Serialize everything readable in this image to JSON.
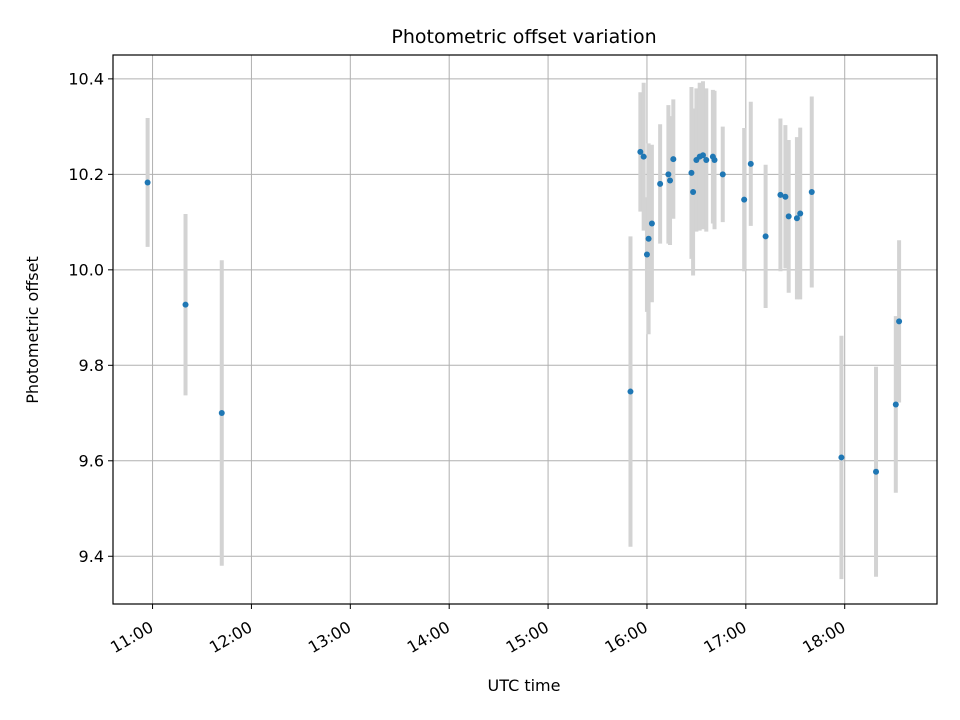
{
  "chart_data": {
    "type": "scatter",
    "title": "Photometric offset variation",
    "xlabel": "UTC time",
    "ylabel": "Photometric offset",
    "x_ticks": [
      "11:00",
      "12:00",
      "13:00",
      "14:00",
      "15:00",
      "16:00",
      "17:00",
      "18:00"
    ],
    "y_ticks": [
      "9.4",
      "9.6",
      "9.8",
      "10.0",
      "10.2",
      "10.4"
    ],
    "xlim": [
      "10:36",
      "18:56"
    ],
    "ylim": [
      9.3,
      10.45
    ],
    "grid": true,
    "colors": {
      "points": "#1f77b4",
      "errorbars": "#d3d3d3",
      "grid": "#b0b0b0"
    },
    "points": [
      {
        "t": "10:57",
        "y": 10.183,
        "err": 0.135
      },
      {
        "t": "11:20",
        "y": 9.927,
        "err": 0.19
      },
      {
        "t": "11:42",
        "y": 9.7,
        "err": 0.32
      },
      {
        "t": "15:50",
        "y": 9.745,
        "err": 0.325
      },
      {
        "t": "15:56",
        "y": 10.247,
        "err": 0.125
      },
      {
        "t": "15:58",
        "y": 10.237,
        "err": 0.155
      },
      {
        "t": "16:00",
        "y": 10.032,
        "err": 0.12
      },
      {
        "t": "16:01",
        "y": 10.065,
        "err": 0.2
      },
      {
        "t": "16:03",
        "y": 10.097,
        "err": 0.165
      },
      {
        "t": "16:08",
        "y": 10.18,
        "err": 0.125
      },
      {
        "t": "16:13",
        "y": 10.2,
        "err": 0.145
      },
      {
        "t": "16:14",
        "y": 10.187,
        "err": 0.135
      },
      {
        "t": "16:16",
        "y": 10.232,
        "err": 0.125
      },
      {
        "t": "16:27",
        "y": 10.203,
        "err": 0.18
      },
      {
        "t": "16:28",
        "y": 10.163,
        "err": 0.175
      },
      {
        "t": "16:30",
        "y": 10.23,
        "err": 0.15
      },
      {
        "t": "16:32",
        "y": 10.237,
        "err": 0.155
      },
      {
        "t": "16:34",
        "y": 10.24,
        "err": 0.155
      },
      {
        "t": "16:36",
        "y": 10.23,
        "err": 0.15
      },
      {
        "t": "16:40",
        "y": 10.237,
        "err": 0.14
      },
      {
        "t": "16:41",
        "y": 10.23,
        "err": 0.145
      },
      {
        "t": "16:46",
        "y": 10.2,
        "err": 0.1
      },
      {
        "t": "16:59",
        "y": 10.147,
        "err": 0.15
      },
      {
        "t": "17:03",
        "y": 10.222,
        "err": 0.13
      },
      {
        "t": "17:12",
        "y": 10.07,
        "err": 0.15
      },
      {
        "t": "17:21",
        "y": 10.157,
        "err": 0.16
      },
      {
        "t": "17:24",
        "y": 10.153,
        "err": 0.15
      },
      {
        "t": "17:26",
        "y": 10.112,
        "err": 0.16
      },
      {
        "t": "17:31",
        "y": 10.108,
        "err": 0.17
      },
      {
        "t": "17:33",
        "y": 10.118,
        "err": 0.18
      },
      {
        "t": "17:40",
        "y": 10.163,
        "err": 0.2
      },
      {
        "t": "17:58",
        "y": 9.607,
        "err": 0.255
      },
      {
        "t": "18:19",
        "y": 9.577,
        "err": 0.22
      },
      {
        "t": "18:31",
        "y": 9.718,
        "err": 0.185
      },
      {
        "t": "18:33",
        "y": 9.892,
        "err": 0.17
      }
    ]
  }
}
